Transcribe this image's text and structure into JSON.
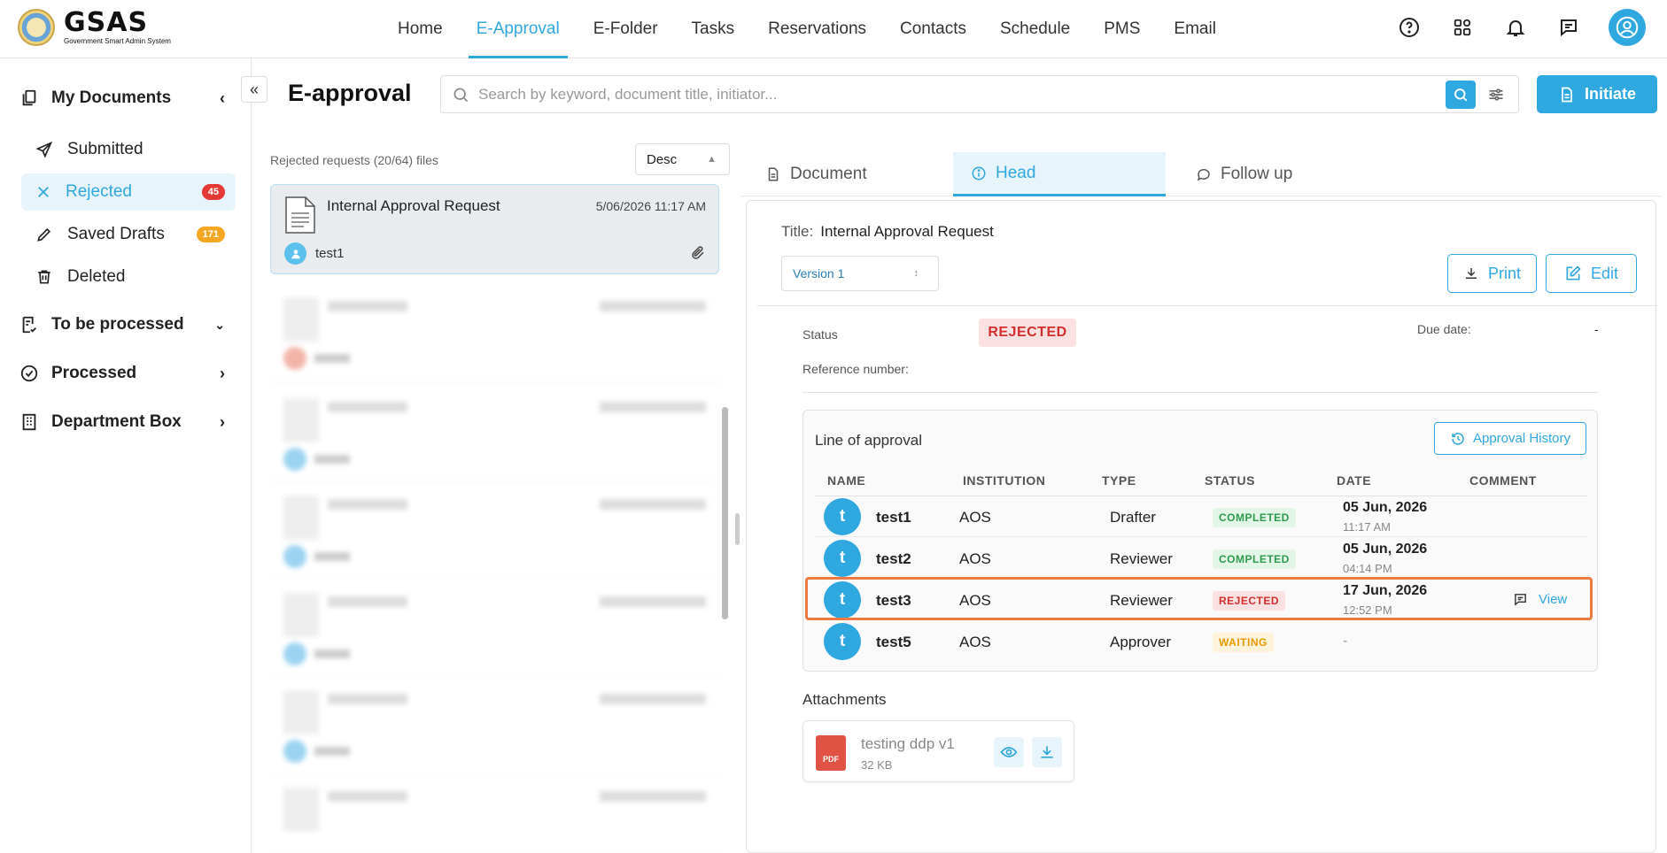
{
  "brand": {
    "name": "GSAS",
    "tagline": "Government Smart Admin System"
  },
  "nav": {
    "items": [
      {
        "label": "Home",
        "active": false
      },
      {
        "label": "E-Approval",
        "active": true
      },
      {
        "label": "E-Folder",
        "active": false
      },
      {
        "label": "Tasks",
        "active": false
      },
      {
        "label": "Reservations",
        "active": false
      },
      {
        "label": "Contacts",
        "active": false
      },
      {
        "label": "Schedule",
        "active": false
      },
      {
        "label": "PMS",
        "active": false
      },
      {
        "label": "Email",
        "active": false
      }
    ],
    "icons": [
      "help-icon",
      "apps-grid-icon",
      "bell-icon",
      "chat-icon",
      "user-avatar-icon"
    ]
  },
  "sidebar": {
    "my_documents": "My Documents",
    "items": [
      {
        "label": "Submitted",
        "icon": "send-icon"
      },
      {
        "label": "Rejected",
        "icon": "close-icon",
        "badge": "45",
        "active": true
      },
      {
        "label": "Saved Drafts",
        "icon": "pencil-icon",
        "badge": "171"
      },
      {
        "label": "Deleted",
        "icon": "trash-icon"
      }
    ],
    "to_be_processed": "To be processed",
    "processed": "Processed",
    "department_box": "Department Box"
  },
  "header": {
    "title": "E-approval",
    "search_placeholder": "Search by keyword, document title, initiator...",
    "initiate_label": "Initiate"
  },
  "list": {
    "summary": "Rejected requests (20/64) files",
    "sort_value": "Desc",
    "selected": {
      "title": "Internal Approval Request",
      "date": "5/06/2026 11:17 AM",
      "user": "test1"
    }
  },
  "tabs": [
    {
      "label": "Document",
      "icon": "document-icon"
    },
    {
      "label": "Head",
      "icon": "info-icon",
      "active": true
    },
    {
      "label": "Follow up",
      "icon": "comment-icon"
    }
  ],
  "detail": {
    "title_key": "Title:",
    "title_value": "Internal Approval Request",
    "version": "Version 1",
    "print_label": "Print",
    "edit_label": "Edit",
    "status_key": "Status",
    "status_value": "REJECTED",
    "due_key": "Due date:",
    "due_value": "-",
    "ref_key": "Reference number:"
  },
  "line_of_approval": {
    "title": "Line of approval",
    "history_label": "Approval History",
    "columns": [
      "NAME",
      "INSTITUTION",
      "TYPE",
      "STATUS",
      "DATE",
      "COMMENT"
    ],
    "rows": [
      {
        "initial": "t",
        "name": "test1",
        "institution": "AOS",
        "type": "Drafter",
        "status": "COMPLETED",
        "date": "05 Jun, 2026",
        "time": "11:17 AM",
        "comment": ""
      },
      {
        "initial": "t",
        "name": "test2",
        "institution": "AOS",
        "type": "Reviewer",
        "status": "COMPLETED",
        "date": "05 Jun, 2026",
        "time": "04:14 PM",
        "comment": ""
      },
      {
        "initial": "t",
        "name": "test3",
        "institution": "AOS",
        "type": "Reviewer",
        "status": "REJECTED",
        "date": "17 Jun, 2026",
        "time": "12:52 PM",
        "comment": "View"
      },
      {
        "initial": "t",
        "name": "test5",
        "institution": "AOS",
        "type": "Approver",
        "status": "WAITING",
        "date": "-",
        "time": "",
        "comment": ""
      }
    ]
  },
  "attachments": {
    "title": "Attachments",
    "file": {
      "badge": "PDF",
      "name": "testing ddp v1",
      "size": "32 KB"
    }
  },
  "colors": {
    "accent": "#2fa8e0",
    "rejected": "#d32f2f",
    "completed": "#2e9b4f",
    "waiting": "#e69a00",
    "highlight": "#ec7a42"
  }
}
